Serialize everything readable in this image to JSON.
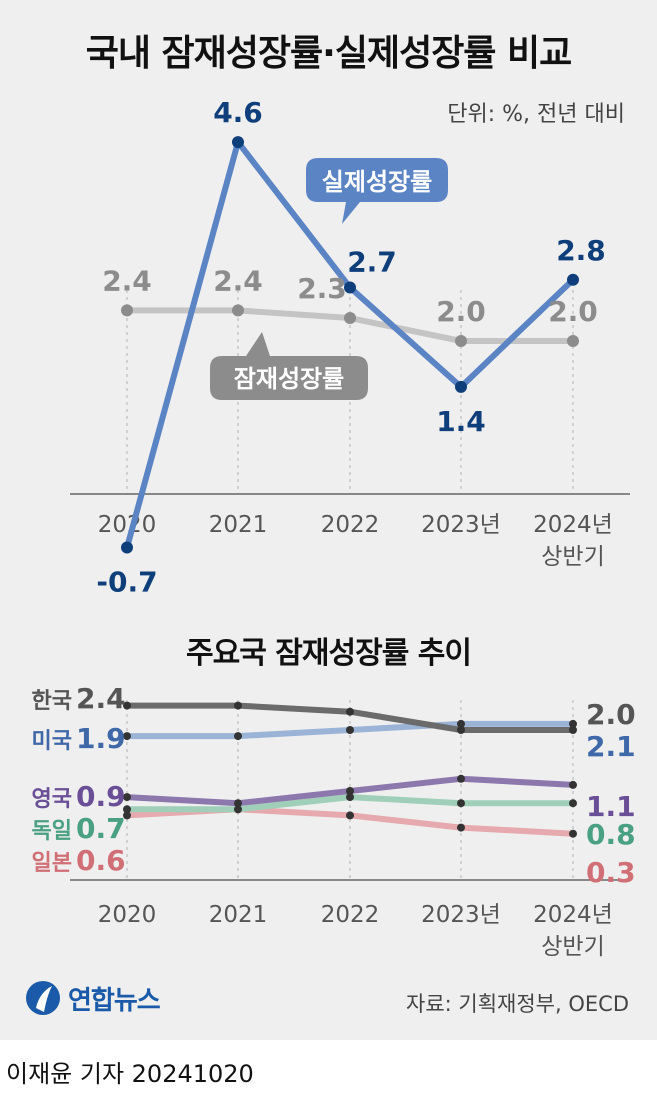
{
  "header": {
    "title": "국내 잠재성장률·실제성장률 비교",
    "unit": "단위: %, 전년 대비"
  },
  "chart_data": [
    {
      "type": "line",
      "title": "국내 잠재성장률·실제성장률 비교",
      "categories": [
        {
          "line1": "2020",
          "line2": ""
        },
        {
          "line1": "2021",
          "line2": ""
        },
        {
          "line1": "2022",
          "line2": ""
        },
        {
          "line1": "2023년",
          "line2": ""
        },
        {
          "line1": "2024년",
          "line2": "상반기"
        }
      ],
      "ylim": [
        -1.2,
        5.6
      ],
      "series": [
        {
          "name": "실제성장률",
          "values": [
            -0.7,
            4.6,
            2.7,
            1.4,
            2.8
          ],
          "labels": [
            "-0.7",
            "4.6",
            "2.7",
            "1.4",
            "2.8"
          ],
          "color": "#5b84c4",
          "marker_color": "#0f3f7a",
          "label_color": "#0f3f7a"
        },
        {
          "name": "잠재성장률",
          "values": [
            2.4,
            2.4,
            2.3,
            2.0,
            2.0
          ],
          "labels": [
            "2.4",
            "2.4",
            "2.3",
            "2.0",
            "2.0"
          ],
          "color": "#c4c4c4",
          "marker_color": "#8c8c8c",
          "label_color": "#8c8c8c"
        }
      ],
      "legend": {
        "actual": "실제성장률",
        "potential": "잠재성장률"
      }
    },
    {
      "type": "line",
      "title": "주요국 잠재성장률 추이",
      "categories": [
        {
          "line1": "2020",
          "line2": ""
        },
        {
          "line1": "2021",
          "line2": ""
        },
        {
          "line1": "2022",
          "line2": ""
        },
        {
          "line1": "2023년",
          "line2": ""
        },
        {
          "line1": "2024년",
          "line2": "상반기"
        }
      ],
      "series": [
        {
          "name": "한국",
          "values": [
            2.4,
            2.4,
            2.3,
            2.0,
            2.0
          ],
          "start_label": "2.4",
          "end_label": "2.0",
          "color": "#6b6b6b",
          "label_color": "#555555"
        },
        {
          "name": "미국",
          "values": [
            1.9,
            1.9,
            2.0,
            2.1,
            2.1
          ],
          "start_label": "1.9",
          "end_label": "2.1",
          "color": "#9bb3d6",
          "label_color": "#3f68a8"
        },
        {
          "name": "영국",
          "values": [
            0.9,
            0.8,
            1.0,
            1.2,
            1.1
          ],
          "start_label": "0.9",
          "end_label": "1.1",
          "color": "#8c78ad",
          "label_color": "#6a4f96"
        },
        {
          "name": "독일",
          "values": [
            0.7,
            0.7,
            0.9,
            0.8,
            0.8
          ],
          "start_label": "0.7",
          "end_label": "0.8",
          "color": "#9fcfb8",
          "label_color": "#4aa082"
        },
        {
          "name": "일본",
          "values": [
            0.6,
            0.7,
            0.6,
            0.4,
            0.3
          ],
          "start_label": "0.6",
          "end_label": "0.3",
          "color": "#e6aaae",
          "label_color": "#d16f76"
        }
      ]
    }
  ],
  "footer": {
    "logo": "연합뉴스",
    "source": "자료: 기획재정부, OECD",
    "byline": "이재윤 기자  20241020"
  }
}
